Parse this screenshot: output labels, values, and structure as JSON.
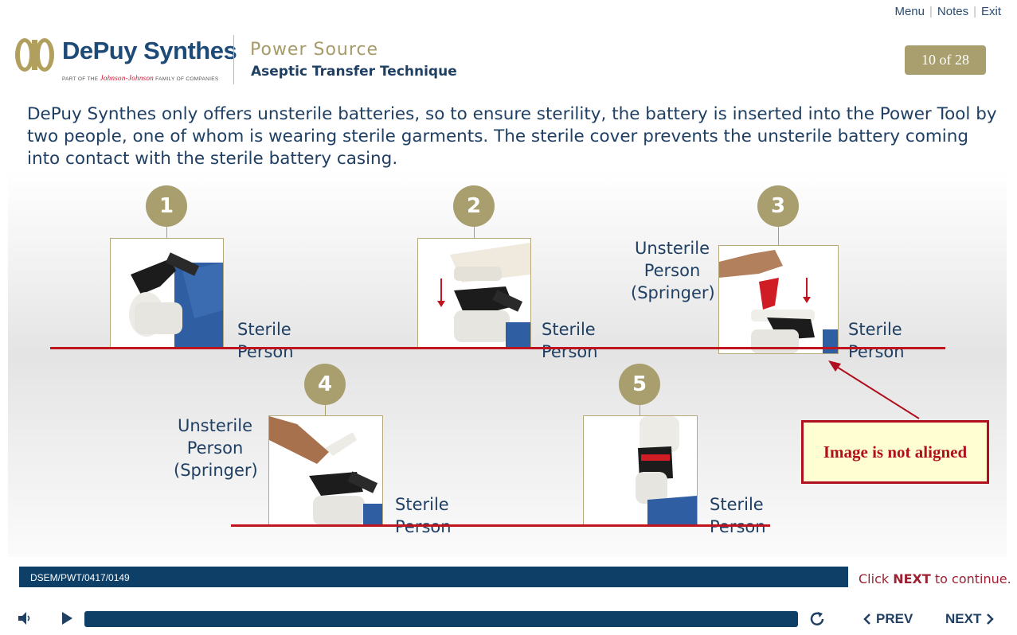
{
  "top_links": [
    "Menu",
    "Notes",
    "Exit"
  ],
  "logo": {
    "brand": "DePuy Synthes",
    "tagline_pre": "PART OF THE",
    "tagline_jj": "Johnson-Johnson",
    "tagline_post": "FAMILY OF COMPANIES"
  },
  "header": {
    "title": "Power Source",
    "subtitle": "Aseptic Transfer Technique",
    "page_indicator": "10 of 28"
  },
  "intro_text": "DePuy Synthes only offers unsterile batteries, so to ensure sterility, the battery is inserted into the Power Tool by two people, one of whom is wearing sterile garments. The sterile cover prevents the unsterile battery coming into contact with the sterile battery casing.",
  "steps": [
    {
      "number": "1",
      "right_label": "Sterile Person"
    },
    {
      "number": "2",
      "right_label": "Sterile Person"
    },
    {
      "number": "3",
      "left_label": "Unsterile Person (Springer)",
      "right_label": "Sterile Person"
    },
    {
      "number": "4",
      "left_label": "Unsterile Person (Springer)",
      "right_label": "Sterile Person"
    },
    {
      "number": "5",
      "right_label": "Sterile Person"
    }
  ],
  "annotation": {
    "text": "Image is not aligned",
    "color": "#b00f1e"
  },
  "footer": {
    "code": "DSEM/PWT/0417/0149",
    "click_prefix": "Click",
    "click_next": "NEXT",
    "click_suffix": "to continue."
  },
  "controls": {
    "prev_label": "PREV",
    "next_label": "NEXT",
    "audio_icon": "speaker-icon",
    "play_icon": "play-icon",
    "replay_icon": "replay-icon"
  },
  "colors": {
    "navy": "#1f3f63",
    "gold": "#a89e6e",
    "red_line": "#c0141f",
    "footer_bar": "#0e3f66"
  }
}
